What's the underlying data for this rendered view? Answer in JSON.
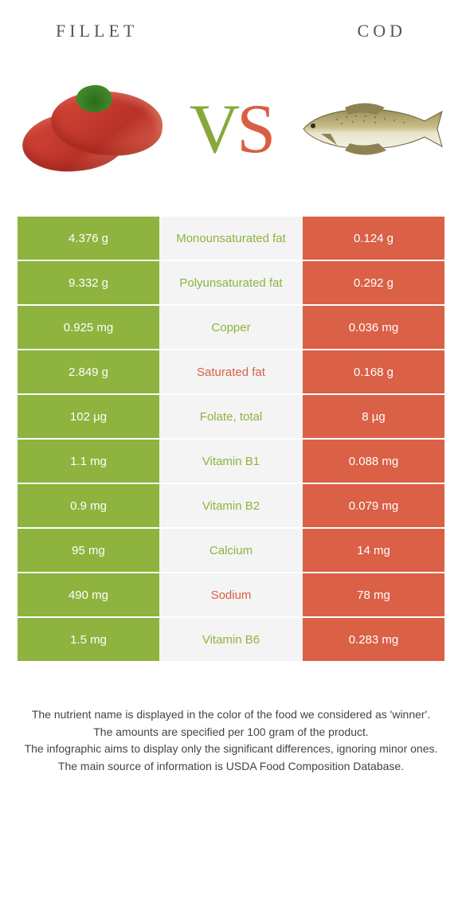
{
  "header": {
    "left": "FILLET",
    "right": "COD"
  },
  "vs": {
    "v": "V",
    "s": "S"
  },
  "colors": {
    "green": "#8eb33f",
    "orange": "#da6046",
    "mid_bg": "#f4f4f4",
    "bg": "#ffffff",
    "title_color": "#4a5a60"
  },
  "rows": [
    {
      "left": "4.376 g",
      "label": "Monounsaturated fat",
      "winner": "green",
      "right": "0.124 g"
    },
    {
      "left": "9.332 g",
      "label": "Polyunsaturated fat",
      "winner": "green",
      "right": "0.292 g"
    },
    {
      "left": "0.925 mg",
      "label": "Copper",
      "winner": "green",
      "right": "0.036 mg"
    },
    {
      "left": "2.849 g",
      "label": "Saturated fat",
      "winner": "orange",
      "right": "0.168 g"
    },
    {
      "left": "102 µg",
      "label": "Folate, total",
      "winner": "green",
      "right": "8 µg"
    },
    {
      "left": "1.1 mg",
      "label": "Vitamin B1",
      "winner": "green",
      "right": "0.088 mg"
    },
    {
      "left": "0.9 mg",
      "label": "Vitamin B2",
      "winner": "green",
      "right": "0.079 mg"
    },
    {
      "left": "95 mg",
      "label": "Calcium",
      "winner": "green",
      "right": "14 mg"
    },
    {
      "left": "490 mg",
      "label": "Sodium",
      "winner": "orange",
      "right": "78 mg"
    },
    {
      "left": "1.5 mg",
      "label": "Vitamin B6",
      "winner": "green",
      "right": "0.283 mg"
    }
  ],
  "footer": {
    "l1": "The nutrient name is displayed in the color of the food we considered as 'winner'.",
    "l2": "The amounts are specified per 100 gram of the product.",
    "l3": "The infographic aims to display only the significant differences, ignoring minor ones.",
    "l4": "The main source of information is USDA Food Composition Database."
  }
}
